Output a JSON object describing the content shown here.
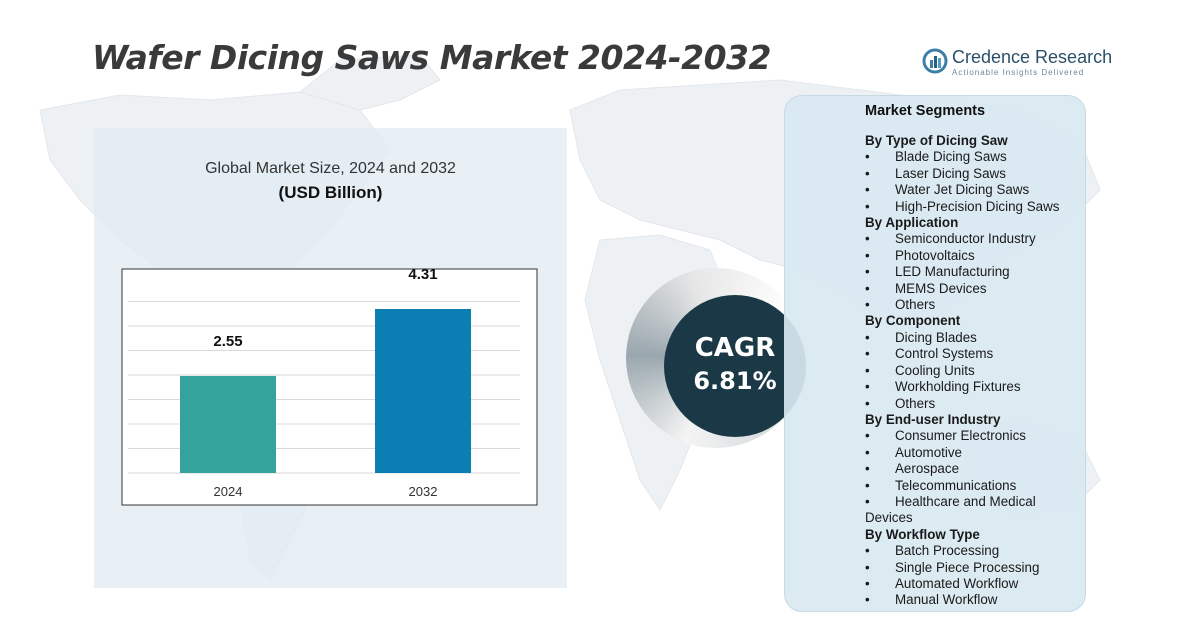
{
  "title": "Wafer Dicing Saws Market  2024-2032",
  "brand": {
    "name": "Credence Research",
    "tagline": "Actionable Insights Delivered"
  },
  "chart_title": "Global Market Size, 2024 and 2032",
  "chart_unit": "(USD Billion)",
  "chart_data": {
    "type": "bar",
    "categories": [
      "2024",
      "2032"
    ],
    "values": [
      2.55,
      4.31
    ],
    "colors": [
      "#34a39c",
      "#0b7fb3"
    ],
    "title": "Global Market Size, 2024 and 2032",
    "ylabel": "",
    "xlabel": "",
    "ylim": [
      0,
      5
    ],
    "grid": true
  },
  "cagr": {
    "label": "CAGR",
    "value": "6.81%"
  },
  "segments": {
    "title": "Market Segments",
    "groups": [
      {
        "name": "By Type of Dicing Saw",
        "items": [
          "Blade Dicing Saws",
          "Laser Dicing Saws",
          "Water Jet Dicing Saws",
          "High-Precision Dicing Saws"
        ]
      },
      {
        "name": "By Application",
        "items": [
          "Semiconductor Industry",
          "Photovoltaics",
          "LED Manufacturing",
          "MEMS Devices",
          "Others"
        ]
      },
      {
        "name": "By Component",
        "items": [
          "Dicing Blades",
          "Control Systems",
          "Cooling Units",
          "Workholding Fixtures",
          "Others"
        ]
      },
      {
        "name": "By End-user Industry",
        "items": [
          "Consumer Electronics",
          "Automotive",
          "Aerospace",
          "Telecommunications",
          "Healthcare and Medical Devices"
        ]
      },
      {
        "name": "By Workflow Type",
        "items": [
          "Batch Processing",
          "Single Piece Processing",
          "Automated Workflow",
          "Manual Workflow"
        ]
      }
    ]
  }
}
